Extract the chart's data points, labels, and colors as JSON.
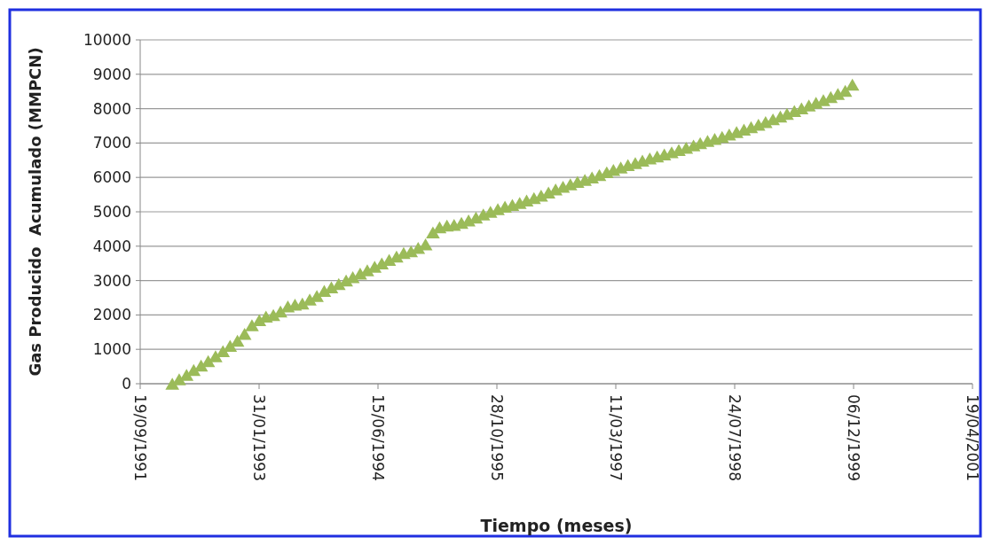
{
  "chart_data": {
    "type": "scatter",
    "xlabel": "Tiempo (meses)",
    "ylabel": "Gas Producido  Acumulado (MMPCN)",
    "x": [
      "1992-02",
      "1992-03",
      "1992-04",
      "1992-05",
      "1992-06",
      "1992-07",
      "1992-08",
      "1992-09",
      "1992-10",
      "1992-11",
      "1992-12",
      "1993-01",
      "1993-02",
      "1993-03",
      "1993-04",
      "1993-05",
      "1993-06",
      "1993-07",
      "1993-08",
      "1993-09",
      "1993-10",
      "1993-11",
      "1993-12",
      "1994-01",
      "1994-02",
      "1994-03",
      "1994-04",
      "1994-05",
      "1994-06",
      "1994-07",
      "1994-08",
      "1994-09",
      "1994-10",
      "1994-11",
      "1994-12",
      "1995-01",
      "1995-02",
      "1995-03",
      "1995-04",
      "1995-05",
      "1995-06",
      "1995-07",
      "1995-08",
      "1995-09",
      "1995-10",
      "1995-11",
      "1995-12",
      "1996-01",
      "1996-02",
      "1996-03",
      "1996-04",
      "1996-05",
      "1996-06",
      "1996-07",
      "1996-08",
      "1996-09",
      "1996-10",
      "1996-11",
      "1996-12",
      "1997-01",
      "1997-02",
      "1997-03",
      "1997-04",
      "1997-05",
      "1997-06",
      "1997-07",
      "1997-08",
      "1997-09",
      "1997-10",
      "1997-11",
      "1997-12",
      "1998-01",
      "1998-02",
      "1998-03",
      "1998-04",
      "1998-05",
      "1998-06",
      "1998-07",
      "1998-08",
      "1998-09",
      "1998-10",
      "1998-11",
      "1998-12",
      "1999-01",
      "1999-02",
      "1999-03",
      "1999-04",
      "1999-05",
      "1999-06",
      "1999-07",
      "1999-08",
      "1999-09",
      "1999-10",
      "1999-11",
      "1999-12"
    ],
    "series": [
      {
        "color": "#9bbb59",
        "values": [
          0,
          130,
          260,
          400,
          530,
          660,
          800,
          950,
          1100,
          1250,
          1450,
          1700,
          1850,
          1950,
          2000,
          2100,
          2250,
          2300,
          2330,
          2450,
          2550,
          2700,
          2800,
          2900,
          3000,
          3100,
          3200,
          3300,
          3400,
          3500,
          3600,
          3700,
          3800,
          3850,
          3950,
          4050,
          4400,
          4550,
          4600,
          4620,
          4680,
          4750,
          4830,
          4920,
          5000,
          5080,
          5150,
          5200,
          5260,
          5330,
          5400,
          5470,
          5560,
          5650,
          5730,
          5800,
          5870,
          5930,
          6000,
          6070,
          6150,
          6220,
          6290,
          6360,
          6420,
          6490,
          6550,
          6610,
          6670,
          6730,
          6800,
          6860,
          6930,
          7000,
          7060,
          7120,
          7180,
          7250,
          7320,
          7390,
          7460,
          7530,
          7610,
          7690,
          7770,
          7850,
          7930,
          8010,
          8090,
          8170,
          8250,
          8340,
          8430,
          8520,
          8700
        ]
      }
    ],
    "xlim": [
      "1991-09-19",
      "2001-04-19"
    ],
    "xticks": [
      {
        "value": "1991-09-19",
        "label": "19/09/1991"
      },
      {
        "value": "1993-01-31",
        "label": "31/01/1993"
      },
      {
        "value": "1994-06-15",
        "label": "15/06/1994"
      },
      {
        "value": "1995-10-28",
        "label": "28/10/1995"
      },
      {
        "value": "1997-03-11",
        "label": "11/03/1997"
      },
      {
        "value": "1998-07-24",
        "label": "24/07/1998"
      },
      {
        "value": "1999-12-06",
        "label": "06/12/1999"
      },
      {
        "value": "2001-04-19",
        "label": "19/04/2001"
      }
    ],
    "ylim": [
      0,
      10000
    ],
    "yticks": [
      0,
      1000,
      2000,
      3000,
      4000,
      5000,
      6000,
      7000,
      8000,
      9000,
      10000
    ],
    "grid": "y",
    "marker": "triangle"
  }
}
